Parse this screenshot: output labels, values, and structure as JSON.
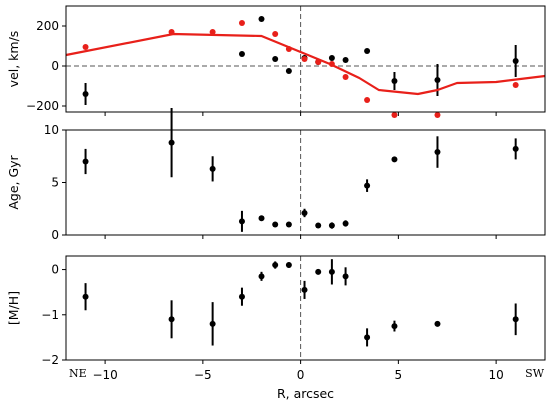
{
  "chart_data": [
    {
      "type": "scatter",
      "ylabel": "vel, km/s",
      "ylim": [
        -230,
        300
      ],
      "xlim": [
        -12.0,
        12.5
      ],
      "yticks": [
        -200,
        0,
        200
      ],
      "reference_lines": {
        "horizontal": 0,
        "vertical": 0
      },
      "series": [
        {
          "kind": "points-with-errorbars",
          "color": "#000000",
          "points": [
            {
              "x": -11.0,
              "y": -140,
              "err": 55
            },
            {
              "x": -3.0,
              "y": 60,
              "err": 0
            },
            {
              "x": -2.0,
              "y": 235,
              "err": 0
            },
            {
              "x": -1.3,
              "y": 35,
              "err": 0
            },
            {
              "x": -0.6,
              "y": -25,
              "err": 0
            },
            {
              "x": 0.2,
              "y": 40,
              "err": 0
            },
            {
              "x": 0.9,
              "y": 20,
              "err": 0
            },
            {
              "x": 1.6,
              "y": 40,
              "err": 0
            },
            {
              "x": 2.3,
              "y": 30,
              "err": 0
            },
            {
              "x": 3.4,
              "y": 75,
              "err": 0
            },
            {
              "x": 4.8,
              "y": -75,
              "err": 45
            },
            {
              "x": 7.0,
              "y": -70,
              "err": 80
            },
            {
              "x": 11.0,
              "y": 25,
              "err": 80
            }
          ]
        },
        {
          "kind": "points",
          "color": "#e8201a",
          "points": [
            {
              "x": -11.0,
              "y": 95
            },
            {
              "x": -6.6,
              "y": 170
            },
            {
              "x": -4.5,
              "y": 170
            },
            {
              "x": -3.0,
              "y": 215
            },
            {
              "x": -1.3,
              "y": 160
            },
            {
              "x": -0.6,
              "y": 85
            },
            {
              "x": 0.2,
              "y": 35
            },
            {
              "x": 0.9,
              "y": 20
            },
            {
              "x": 1.6,
              "y": 10
            },
            {
              "x": 2.3,
              "y": -55
            },
            {
              "x": 3.4,
              "y": -170
            },
            {
              "x": 4.8,
              "y": -245
            },
            {
              "x": 7.0,
              "y": -245
            },
            {
              "x": 11.0,
              "y": -95
            }
          ]
        },
        {
          "kind": "line",
          "color": "#e8201a",
          "points": [
            {
              "x": -12.0,
              "y": 55
            },
            {
              "x": -6.5,
              "y": 160
            },
            {
              "x": -2.0,
              "y": 150
            },
            {
              "x": 0.0,
              "y": 70
            },
            {
              "x": 1.5,
              "y": 10
            },
            {
              "x": 3.0,
              "y": -60
            },
            {
              "x": 4.0,
              "y": -120
            },
            {
              "x": 6.0,
              "y": -140
            },
            {
              "x": 7.0,
              "y": -120
            },
            {
              "x": 8.0,
              "y": -85
            },
            {
              "x": 10.0,
              "y": -80
            },
            {
              "x": 12.5,
              "y": -50
            }
          ]
        }
      ]
    },
    {
      "type": "scatter",
      "ylabel": "Age, Gyr",
      "ylim": [
        0,
        10
      ],
      "xlim": [
        -12.0,
        12.5
      ],
      "yticks": [
        0,
        5,
        10
      ],
      "reference_lines": {
        "vertical": 0
      },
      "series": [
        {
          "kind": "points-with-errorbars",
          "color": "#000000",
          "points": [
            {
              "x": -11.0,
              "y": 7.0,
              "err": 1.2
            },
            {
              "x": -6.6,
              "y": 8.8,
              "err": 3.3
            },
            {
              "x": -4.5,
              "y": 6.3,
              "err": 1.2
            },
            {
              "x": -3.0,
              "y": 1.3,
              "err": 1.0
            },
            {
              "x": -2.0,
              "y": 1.6,
              "err": 0.2
            },
            {
              "x": -1.3,
              "y": 1.0,
              "err": 0.2
            },
            {
              "x": -0.6,
              "y": 1.0,
              "err": 0.2
            },
            {
              "x": 0.2,
              "y": 2.1,
              "err": 0.4
            },
            {
              "x": 0.9,
              "y": 0.9,
              "err": 0.2
            },
            {
              "x": 1.6,
              "y": 0.9,
              "err": 0.3
            },
            {
              "x": 2.3,
              "y": 1.1,
              "err": 0.3
            },
            {
              "x": 3.4,
              "y": 4.7,
              "err": 0.6
            },
            {
              "x": 4.8,
              "y": 7.2,
              "err": 0.2
            },
            {
              "x": 7.0,
              "y": 7.9,
              "err": 1.5
            },
            {
              "x": 11.0,
              "y": 8.2,
              "err": 1.0
            }
          ]
        }
      ]
    },
    {
      "type": "scatter",
      "xlabel": "R, arcsec",
      "ylabel": "[M/H]",
      "ylim": [
        -2,
        0.3
      ],
      "xlim": [
        -12.0,
        12.5
      ],
      "yticks": [
        -2,
        -1,
        0
      ],
      "xticks": [
        -10,
        -5,
        0,
        5,
        10
      ],
      "side_labels": {
        "left": "NE",
        "right": "SW"
      },
      "reference_lines": {
        "vertical": 0
      },
      "series": [
        {
          "kind": "points-with-errorbars",
          "color": "#000000",
          "points": [
            {
              "x": -11.0,
              "y": -0.6,
              "err": 0.3
            },
            {
              "x": -6.6,
              "y": -1.1,
              "err": 0.42
            },
            {
              "x": -4.5,
              "y": -1.2,
              "err": 0.48
            },
            {
              "x": -3.0,
              "y": -0.6,
              "err": 0.2
            },
            {
              "x": -2.0,
              "y": -0.15,
              "err": 0.1
            },
            {
              "x": -1.3,
              "y": 0.1,
              "err": 0.08
            },
            {
              "x": -0.6,
              "y": 0.1,
              "err": 0.06
            },
            {
              "x": 0.2,
              "y": -0.45,
              "err": 0.2
            },
            {
              "x": 0.9,
              "y": -0.05,
              "err": 0.06
            },
            {
              "x": 1.6,
              "y": -0.05,
              "err": 0.28
            },
            {
              "x": 2.3,
              "y": -0.15,
              "err": 0.2
            },
            {
              "x": 3.4,
              "y": -1.5,
              "err": 0.2
            },
            {
              "x": 4.8,
              "y": -1.25,
              "err": 0.12
            },
            {
              "x": 7.0,
              "y": -1.2,
              "err": 0.06
            },
            {
              "x": 11.0,
              "y": -1.1,
              "err": 0.35
            }
          ]
        }
      ]
    }
  ]
}
